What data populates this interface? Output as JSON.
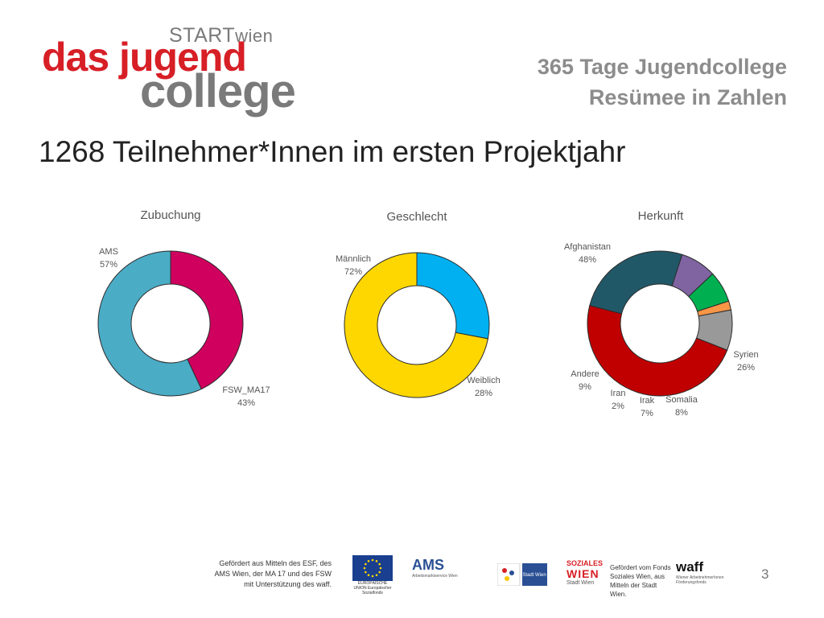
{
  "logo": {
    "start_text": "START",
    "start_suffix": "wien",
    "line1": "das jugend",
    "line2": "college"
  },
  "header": {
    "line1": "365 Tage Jugendcollege",
    "line2": "Resümee in Zahlen"
  },
  "page_title": "1268 Teilnehmer*Innen im ersten Projektjahr",
  "colors": {
    "ams": "#4bacc6",
    "fsw": "#d0005e",
    "maennlich": "#ffd700",
    "weiblich": "#00b0f0",
    "afghanistan": "#c00000",
    "syrien": "#215868",
    "somalia": "#8064a2",
    "irak": "#00b050",
    "iran": "#f79646",
    "andere": "#999999"
  },
  "chart_data": [
    {
      "type": "pie",
      "title": "Zubuchung",
      "categories": [
        "AMS",
        "FSW_MA17"
      ],
      "values": [
        57,
        43
      ],
      "labels": [
        "57%",
        "43%"
      ],
      "colors": [
        "#4bacc6",
        "#d0005e"
      ]
    },
    {
      "type": "pie",
      "title": "Geschlecht",
      "categories": [
        "Männlich",
        "Weiblich"
      ],
      "values": [
        72,
        28
      ],
      "labels": [
        "72%",
        "28%"
      ],
      "colors": [
        "#ffd700",
        "#00b0f0"
      ]
    },
    {
      "type": "pie",
      "title": "Herkunft",
      "categories": [
        "Afghanistan",
        "Syrien",
        "Somalia",
        "Irak",
        "Iran",
        "Andere"
      ],
      "values": [
        48,
        26,
        8,
        7,
        2,
        9
      ],
      "labels": [
        "48%",
        "26%",
        "8%",
        "7%",
        "2%",
        "9%"
      ],
      "colors": [
        "#c00000",
        "#215868",
        "#8064a2",
        "#00b050",
        "#f79646",
        "#999999"
      ]
    }
  ],
  "footer": {
    "funding_text": "Gefördert aus Mitteln des ESF, des AMS Wien, der MA 17 und des FSW mit Unterstützung des waff.",
    "eu_caption": "EUROPÄISCHE UNION Europäischer Sozialfonds",
    "ams_text": "AMS",
    "ams_caption": "Arbeitsmarktservice Wien",
    "stadt_text": "Stadt Wien",
    "sw_text1": "SOZIALES",
    "sw_text2": "WIEN",
    "sw_text3": "Stadt Wien",
    "sw_caption": "Gefördert vom Fonds Soziales Wien, aus Mitteln der Stadt Wien.",
    "waff_text": "waff",
    "waff_caption": "Wiener ArbeitnehmerInnen Förderungsfonds",
    "page_number": "3"
  }
}
